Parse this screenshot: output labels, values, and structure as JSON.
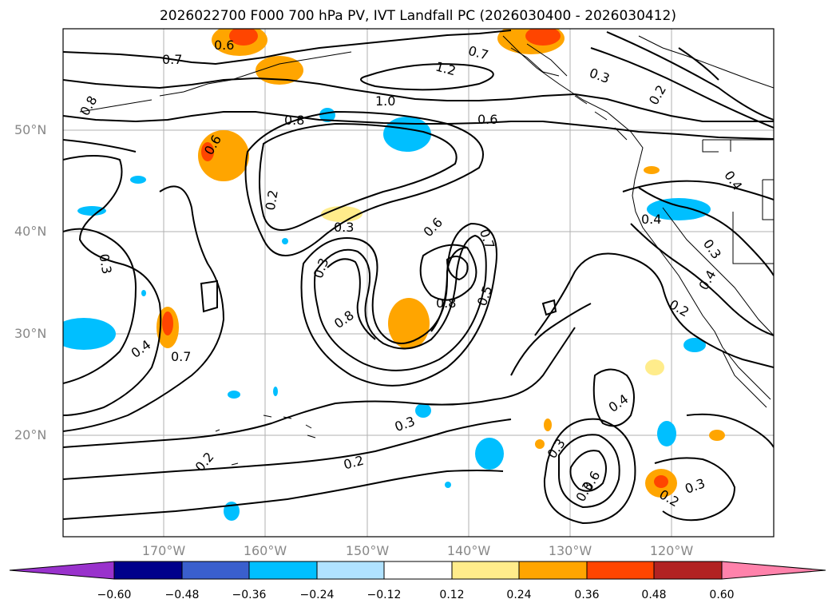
{
  "title": "2026022700 F000 700 hPa PV, IVT Landfall PC (2026030400 - 2026030412)",
  "lat_labels": [
    "50°N",
    "40°N",
    "30°N",
    "20°N"
  ],
  "lon_labels": [
    "170°W",
    "160°W",
    "150°W",
    "140°W",
    "130°W",
    "120°W"
  ],
  "contour_labels": [
    "0.6",
    "0.7",
    "0.8",
    "0.6",
    "0.8",
    "1.0",
    "1.2",
    "0.6",
    "0.7",
    "0.3",
    "0.2",
    "0.2",
    "0.3",
    "0.3",
    "0.3",
    "0.6",
    "0.7",
    "0.8",
    "0.5",
    "0.8",
    "0.4",
    "0.7",
    "0.3",
    "0.2",
    "0.2",
    "0.3",
    "0.4",
    "0.3",
    "0.6",
    "0.4",
    "0.2",
    "0.3",
    "0.4",
    "0.4",
    "0.2",
    "0.3"
  ],
  "colorbar": {
    "ticks": [
      "−0.60",
      "−0.48",
      "−0.36",
      "−0.24",
      "−0.12",
      "0.12",
      "0.24",
      "0.36",
      "0.48",
      "0.60"
    ],
    "colors": [
      "#9932cc",
      "#00008b",
      "#3a5fcd",
      "#00bfff",
      "#b0e2ff",
      "#ffffff",
      "#ffec8b",
      "#ffa500",
      "#ff4500",
      "#b22222",
      "#ff82ab"
    ]
  }
}
